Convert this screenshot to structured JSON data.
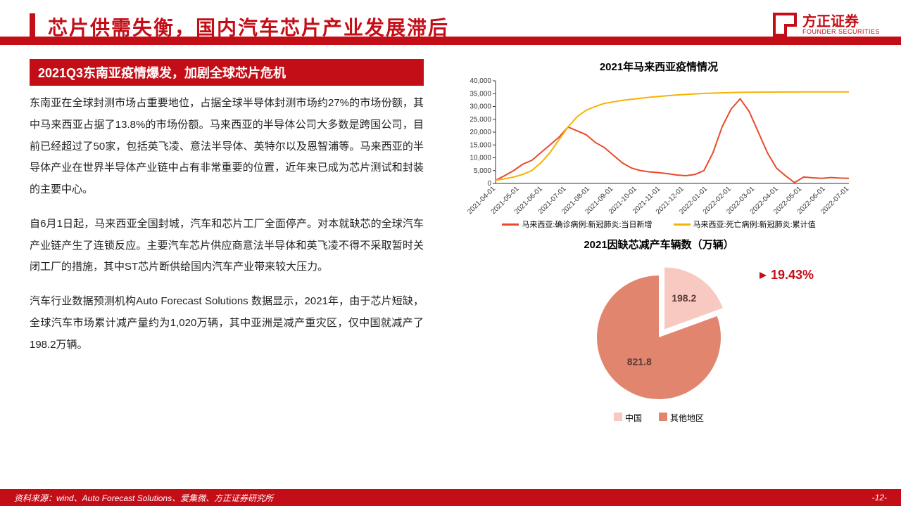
{
  "header": {
    "title": "芯片供需失衡，国内汽车芯片产业发展滞后",
    "logo_cn": "方正证券",
    "logo_en": "FOUNDER SECURITIES"
  },
  "left": {
    "subtitle": "2021Q3东南亚疫情爆发，加剧全球芯片危机",
    "p1": "东南亚在全球封测市场占重要地位，占据全球半导体封测市场约27%的市场份额，其中马来西亚占据了13.8%的市场份额。马来西亚的半导体公司大多数是跨国公司，目前已经超过了50家，包括英飞凌、意法半导体、英特尔以及恩智浦等。马来西亚的半导体产业在世界半导体产业链中占有非常重要的位置，近年来已成为芯片测试和封装的主要中心。",
    "p2": "自6月1日起，马来西亚全国封城，汽车和芯片工厂全面停产。对本就缺芯的全球汽车产业链产生了连锁反应。主要汽车芯片供应商意法半导体和英飞凌不得不采取暂时关闭工厂的措施，其中ST芯片断供给国内汽车产业带来较大压力。",
    "p3": "汽车行业数据预测机构Auto Forecast Solutions 数据显示，2021年，由于芯片短缺，全球汽车市场累计减产量约为1,020万辆，其中亚洲是减产重灾区，仅中国就减产了198.2万辆。"
  },
  "line_chart": {
    "title": "2021年马来西亚疫情情况",
    "type": "line",
    "x_labels": [
      "2021-04-01",
      "2021-05-01",
      "2021-06-01",
      "2021-07-01",
      "2021-08-01",
      "2021-09-01",
      "2021-10-01",
      "2021-11-01",
      "2021-12-01",
      "2022-01-01",
      "2022-02-01",
      "2022-03-01",
      "2022-04-01",
      "2022-05-01",
      "2022-06-01",
      "2022-07-01"
    ],
    "y_ticks": [
      0,
      5000,
      10000,
      15000,
      20000,
      25000,
      30000,
      35000,
      40000
    ],
    "ylim": [
      0,
      40000
    ],
    "series": [
      {
        "name": "马来西亚:确诊病例:新冠肺炎:当日新增",
        "color": "#e84a2b",
        "width": 2,
        "values": [
          1200,
          3000,
          5000,
          7500,
          9000,
          12000,
          15000,
          18000,
          22000,
          20500,
          19000,
          16000,
          14000,
          11000,
          8000,
          6000,
          5000,
          4500,
          4200,
          3800,
          3300,
          3000,
          3500,
          5000,
          12000,
          22000,
          29000,
          33000,
          28000,
          20000,
          12000,
          6000,
          3000,
          300,
          2500,
          2200,
          2000,
          2300,
          2100,
          2000
        ]
      },
      {
        "name": "马来西亚:死亡病例:新冠肺炎:累计值",
        "color": "#f5b301",
        "width": 2,
        "values": [
          1200,
          1800,
          2500,
          3500,
          5000,
          8000,
          12000,
          17000,
          22000,
          26000,
          28500,
          30000,
          31200,
          31800,
          32400,
          32800,
          33200,
          33600,
          33900,
          34200,
          34500,
          34700,
          34900,
          35100,
          35200,
          35300,
          35400,
          35500,
          35550,
          35580,
          35600,
          35620,
          35640,
          35660,
          35670,
          35680,
          35690,
          35695,
          35698,
          35700
        ]
      }
    ],
    "background_color": "#ffffff",
    "grid_color": "#333333",
    "axis_fontsize": 10,
    "title_fontsize": 15
  },
  "pie_chart": {
    "title": "2021因缺芯减产车辆数（万辆）",
    "type": "pie",
    "slices": [
      {
        "label": "中国",
        "value": 198.2,
        "color": "#f7c9c0",
        "explode": true
      },
      {
        "label": "其他地区",
        "value": 821.8,
        "color": "#e2856e",
        "explode": false
      }
    ],
    "callout_pct": "19.43%",
    "callout_color": "#c40e17",
    "legend_labels": [
      "中国",
      "其他地区"
    ],
    "title_fontsize": 15,
    "label_fontsize": 14
  },
  "footer": {
    "source": "资料来源：wind、Auto Forecast Solutions、爱集微、方正证券研究所",
    "page": "-12-"
  },
  "colors": {
    "brand": "#c40e17"
  }
}
